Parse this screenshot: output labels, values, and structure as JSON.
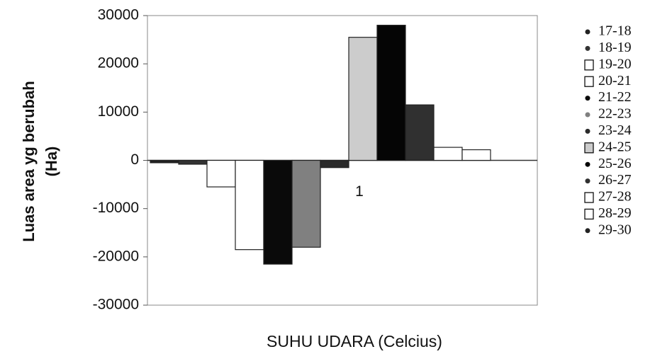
{
  "chart_data": {
    "type": "bar",
    "x_label": "SUHU UDARA (Celcius)",
    "y_label": [
      "Luas area yg berubah",
      "(Ha)"
    ],
    "categories": [
      "1"
    ],
    "series": [
      {
        "name": "17-18",
        "color": "#222222",
        "values": [
          -500
        ]
      },
      {
        "name": "18-19",
        "color": "#333333",
        "values": [
          -800
        ]
      },
      {
        "name": "19-20",
        "color": "#ffffff",
        "values": [
          -5500
        ]
      },
      {
        "name": "20-21",
        "color": "#ffffff",
        "values": [
          -18500
        ]
      },
      {
        "name": "21-22",
        "color": "#0a0a0a",
        "values": [
          -21500
        ]
      },
      {
        "name": "22-23",
        "color": "#808080",
        "values": [
          -18000
        ]
      },
      {
        "name": "23-24",
        "color": "#2a2a2a",
        "values": [
          -1500
        ]
      },
      {
        "name": "24-25",
        "color": "#cccccc",
        "values": [
          25500
        ]
      },
      {
        "name": "25-26",
        "color": "#050505",
        "values": [
          28000
        ]
      },
      {
        "name": "26-27",
        "color": "#303030",
        "values": [
          11500
        ]
      },
      {
        "name": "27-28",
        "color": "#ffffff",
        "values": [
          2700
        ]
      },
      {
        "name": "28-29",
        "color": "#ffffff",
        "values": [
          2200
        ]
      },
      {
        "name": "29-30",
        "color": "#222222",
        "values": [
          0
        ]
      }
    ],
    "ylim": [
      -30000,
      30000
    ],
    "yticks": [
      -30000,
      -20000,
      -10000,
      0,
      10000,
      20000,
      30000
    ],
    "grid": false
  }
}
